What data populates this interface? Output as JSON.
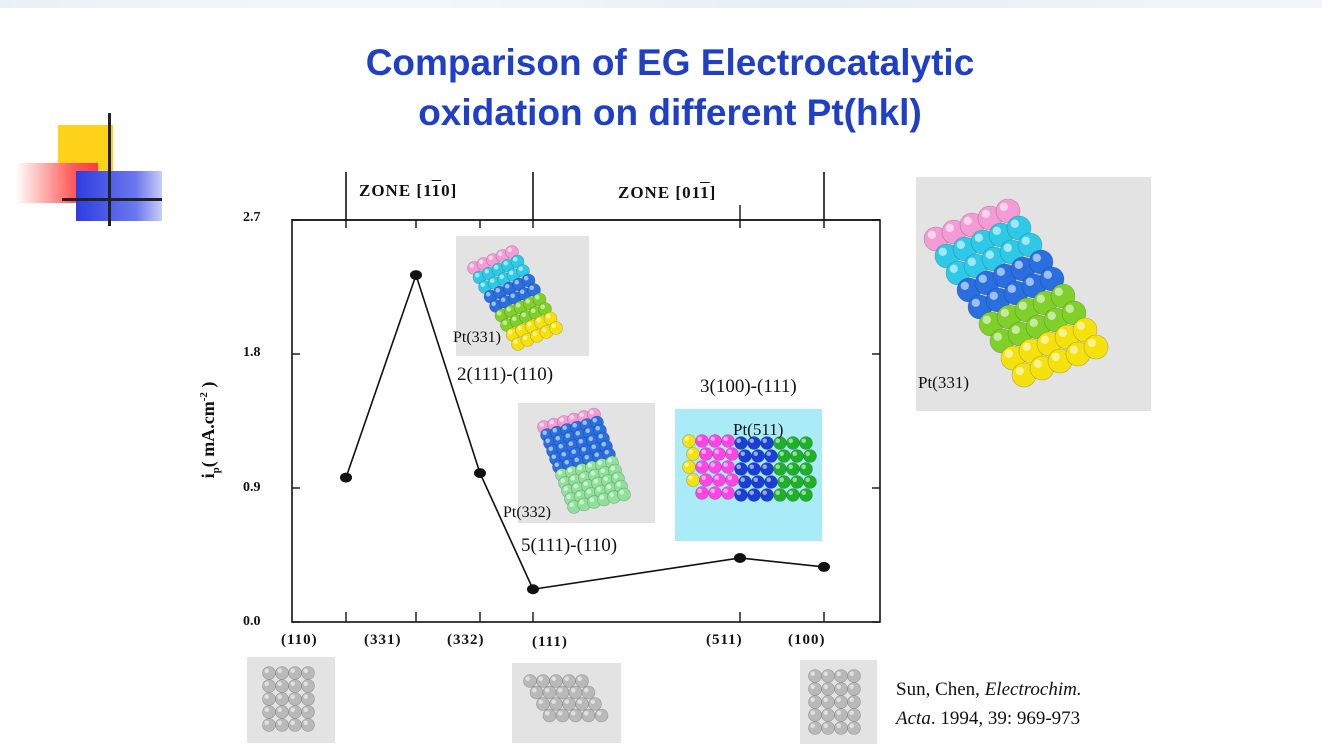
{
  "slide": {
    "title_line1": "Comparison of EG Electrocatalytic",
    "title_line2": "oxidation on different Pt(hkl)"
  },
  "chart_data": {
    "type": "line",
    "x": [
      "(110)",
      "(331)",
      "(332)",
      "(111)",
      "(511)",
      "(100)"
    ],
    "values": [
      0.97,
      2.33,
      1.0,
      0.22,
      0.43,
      0.37
    ],
    "y_ticks": [
      "0.0",
      "0.9",
      "1.8",
      "2.7"
    ],
    "ylim": [
      0,
      2.7
    ],
    "ylabel_main": "i",
    "ylabel_sub": "p",
    "ylabel_rest": "( mA.cm",
    "ylabel_sup": "-2",
    "ylabel_end": " )",
    "zone1": "ZONE [1",
    "zone1_bar": "1",
    "zone1_end": "0]",
    "zone2": "ZONE [01",
    "zone2_bar": "1",
    "zone2_end": "]",
    "annotations": {
      "a331": "2(111)-(110)",
      "a332": "5(111)-(110)",
      "a511": "3(100)-(111)"
    },
    "model_labels": {
      "pt331_small": "Pt(331)",
      "pt332": "Pt(332)",
      "pt511": "Pt(511)",
      "pt331_large": "Pt(331)"
    }
  },
  "citation": {
    "authors": "Sun, Chen, ",
    "journal1": "Electrochim.",
    "journal2": "Acta",
    "rest": ". 1994, 39: 969-973"
  },
  "colors": {
    "title": "#1f3fc7",
    "pink": "#f29bd4",
    "cyan": "#2fc9e8",
    "blue": "#2a6fe0",
    "green": "#7fd12a",
    "yellow": "#f5e10d",
    "panel_bg": "#e3e3e3",
    "panel_511_bg": "#a9ecf7"
  }
}
